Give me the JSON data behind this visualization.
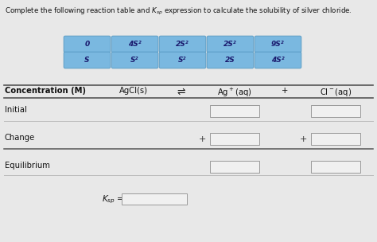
{
  "bg_color": "#e8e8e8",
  "button_bg": "#7ab8e0",
  "button_text_color": "#1a1a6e",
  "button_border": "#5a9cc5",
  "row1_labels": [
    "0",
    "4S²",
    "2S²",
    "2S²",
    "9S²"
  ],
  "row2_labels": [
    "S",
    "S²",
    "S²",
    "2S",
    "4S²"
  ],
  "col_headers": [
    "Concentration (M)",
    "AgCl(s)",
    "⇌",
    "Ag⁺(aq)",
    "+",
    "Cl⁻(aq)"
  ],
  "row_labels": [
    "Initial",
    "Change",
    "Equilibrium"
  ],
  "table_line_color": "#555555",
  "input_box_color": "#f0f0f0",
  "input_box_border": "#999999",
  "title_fontsize": 6.2,
  "btn_fontsize": 6.5,
  "header_fontsize": 7.2,
  "row_fontsize": 7.2
}
